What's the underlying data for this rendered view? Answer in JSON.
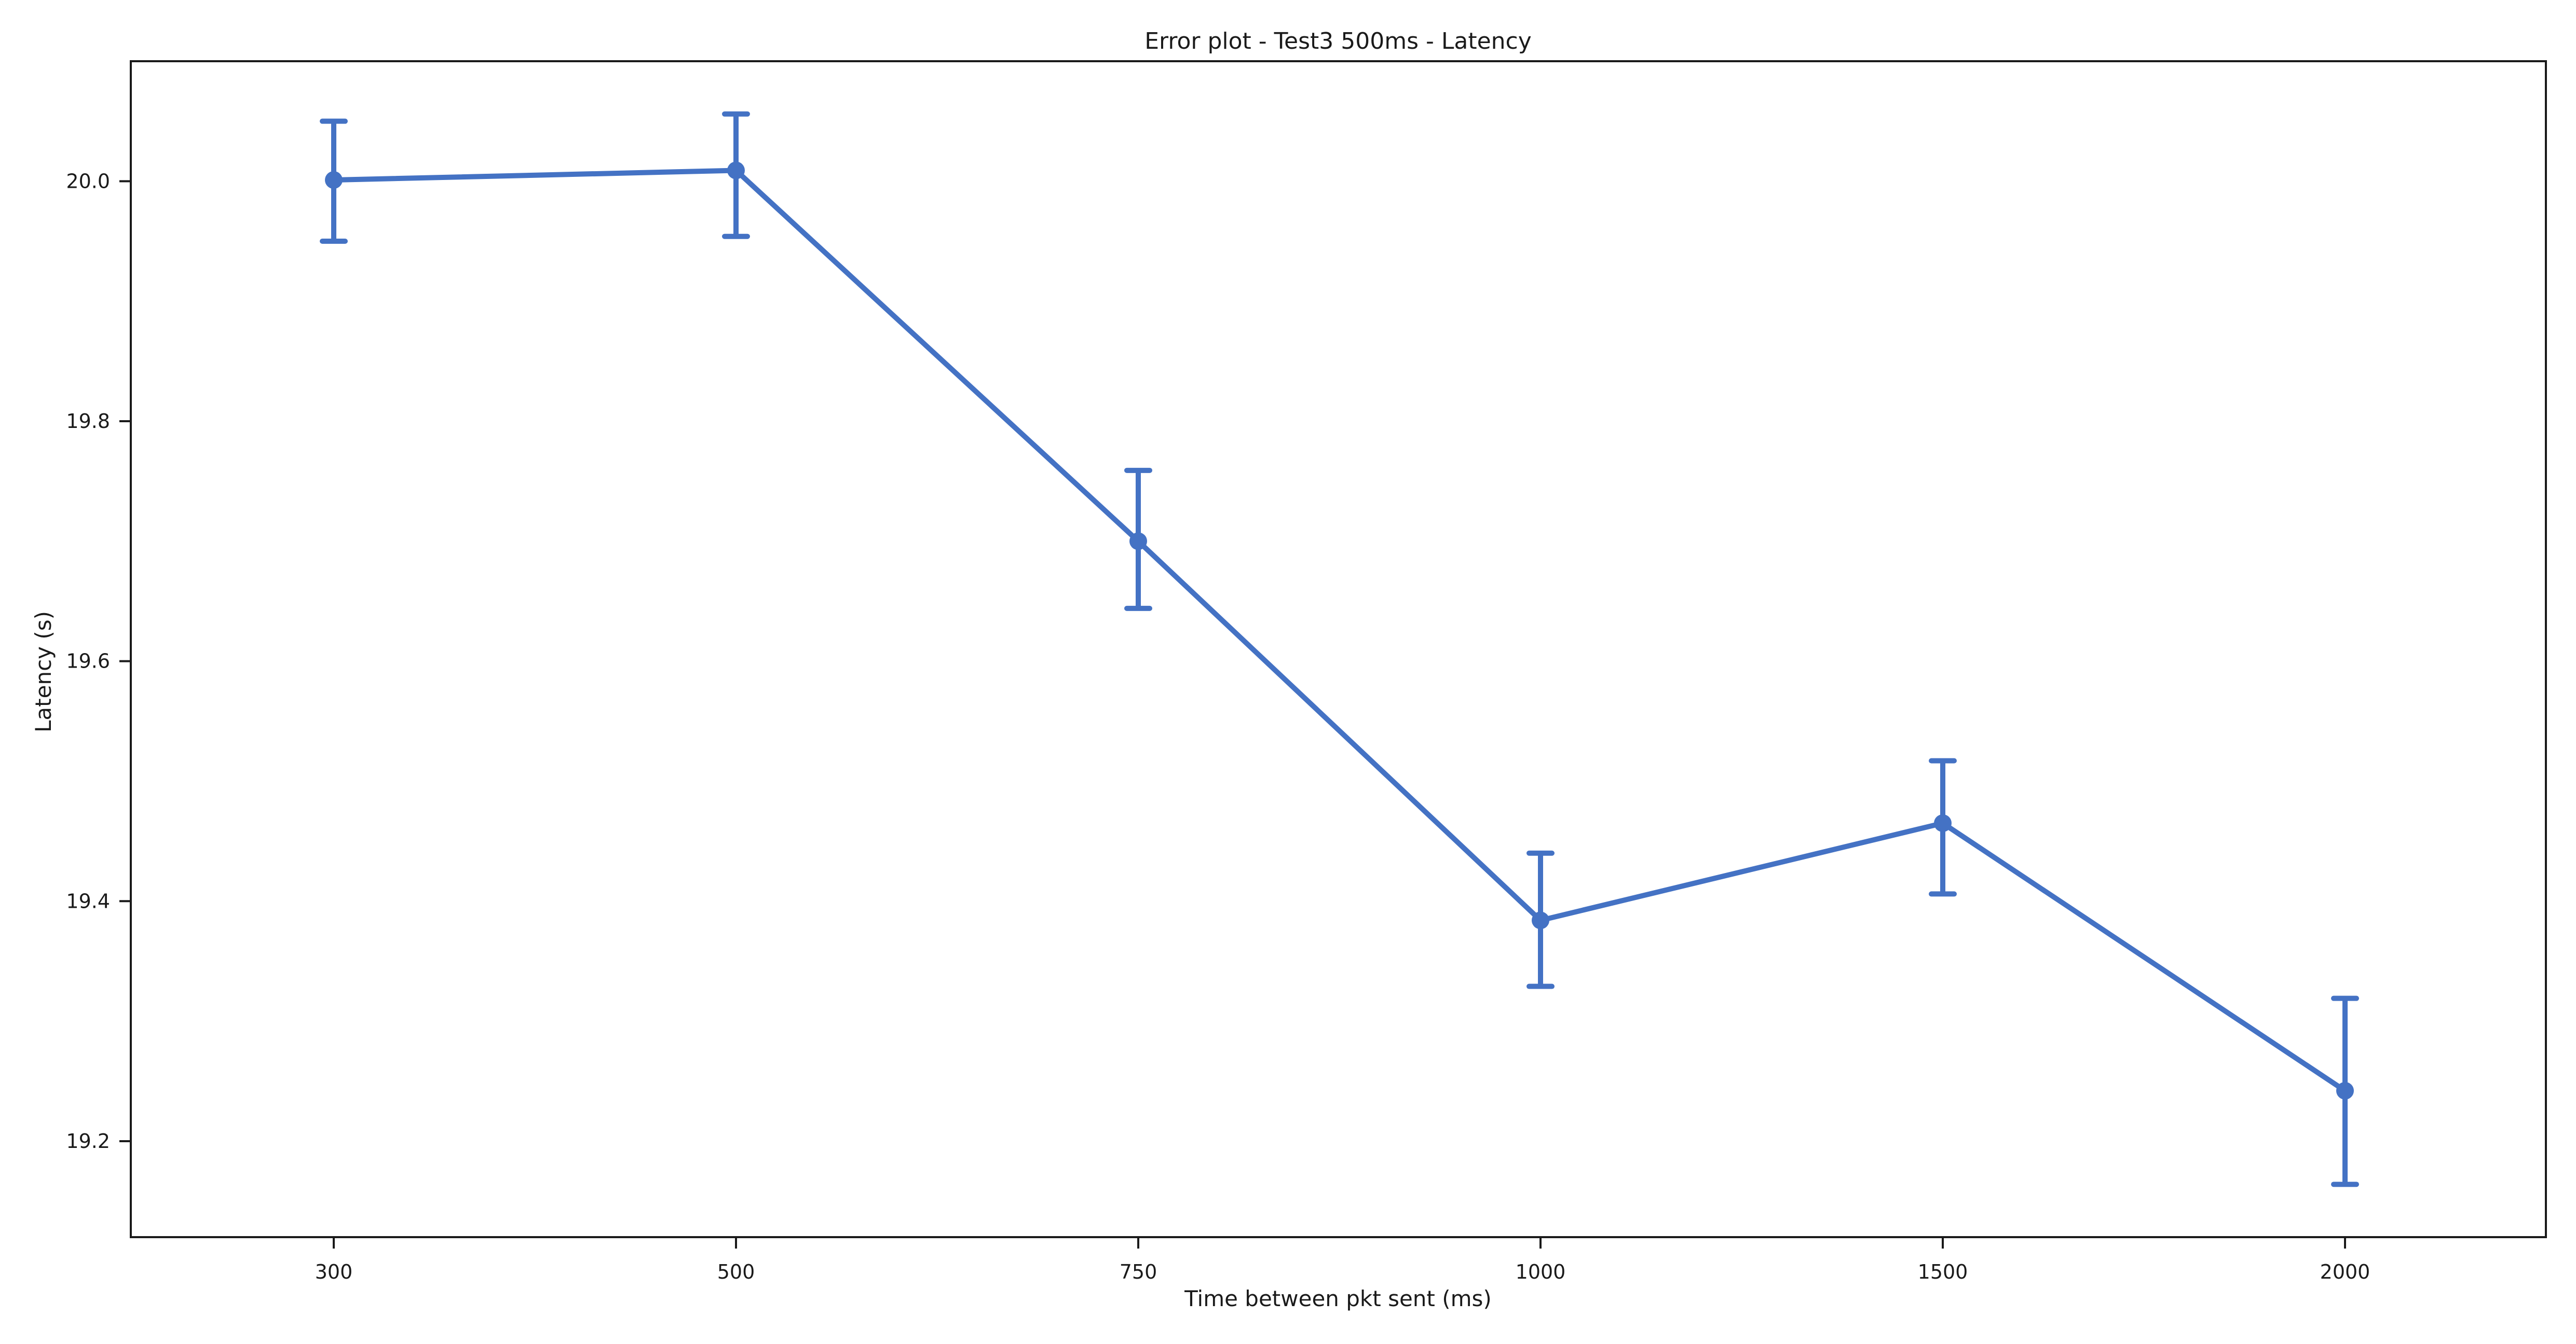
{
  "chart_data": {
    "type": "line",
    "title": "Error plot - Test3 500ms - Latency",
    "xlabel": "Time between pkt sent (ms)",
    "ylabel": "Latency (s)",
    "categories": [
      "300",
      "500",
      "750",
      "1000",
      "1500",
      "2000"
    ],
    "series": [
      {
        "values": [
          20.001,
          20.009,
          19.7,
          19.384,
          19.465,
          19.242
        ],
        "error_low": [
          19.95,
          19.954,
          19.644,
          19.329,
          19.406,
          19.164
        ],
        "error_high": [
          20.05,
          20.056,
          19.759,
          19.44,
          19.517,
          19.319
        ],
        "color": "#4472c4"
      }
    ],
    "yticks": [
      "19.2",
      "19.4",
      "19.6",
      "19.8",
      "20.0"
    ],
    "ylim": [
      19.12,
      20.1
    ],
    "grid": false,
    "legend": "none"
  }
}
